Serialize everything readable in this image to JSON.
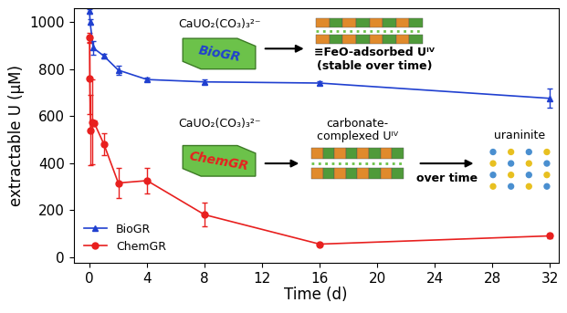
{
  "chart_data": {
    "type": "line",
    "xlabel": "Time (d)",
    "ylabel": "extractable U (μM)",
    "xlim": [
      -1.1,
      32.6
    ],
    "xticks": [
      0,
      4,
      8,
      12,
      16,
      20,
      24,
      28,
      32
    ],
    "ylim": [
      -25,
      1060
    ],
    "yticks": [
      0,
      200,
      400,
      600,
      800,
      1000
    ],
    "legend": "lower left",
    "series": [
      {
        "name": "BioGR",
        "color": "#2040d0",
        "marker": "triangle",
        "x": [
          0,
          0.04,
          0.25,
          1,
          2,
          4,
          8,
          16,
          32
        ],
        "values": [
          1045,
          1000,
          890,
          855,
          795,
          755,
          745,
          740,
          675
        ],
        "errors": [
          10,
          10,
          30,
          10,
          20,
          8,
          10,
          8,
          40
        ]
      },
      {
        "name": "ChemGR",
        "color": "#e8201f",
        "marker": "circle",
        "x": [
          0,
          0.02,
          0.08,
          0.17,
          0.33,
          1,
          2,
          4,
          8,
          16,
          32
        ],
        "values": [
          935,
          760,
          540,
          575,
          570,
          480,
          315,
          325,
          180,
          55,
          90
        ],
        "errors": [
          20,
          150,
          150,
          180,
          10,
          45,
          65,
          55,
          50,
          5,
          10
        ]
      }
    ],
    "annotations": [
      "CaUO₂(CO₃)₃²⁻",
      "BioGR",
      "≡FeO-adsorbed Uᴵⱽ",
      "(stable over time)",
      "CaUO₂(CO₃)₃²⁻",
      "ChemGR",
      "carbonate-\ncomplexed Uᴵⱽ",
      "over time",
      "uraninite"
    ]
  }
}
